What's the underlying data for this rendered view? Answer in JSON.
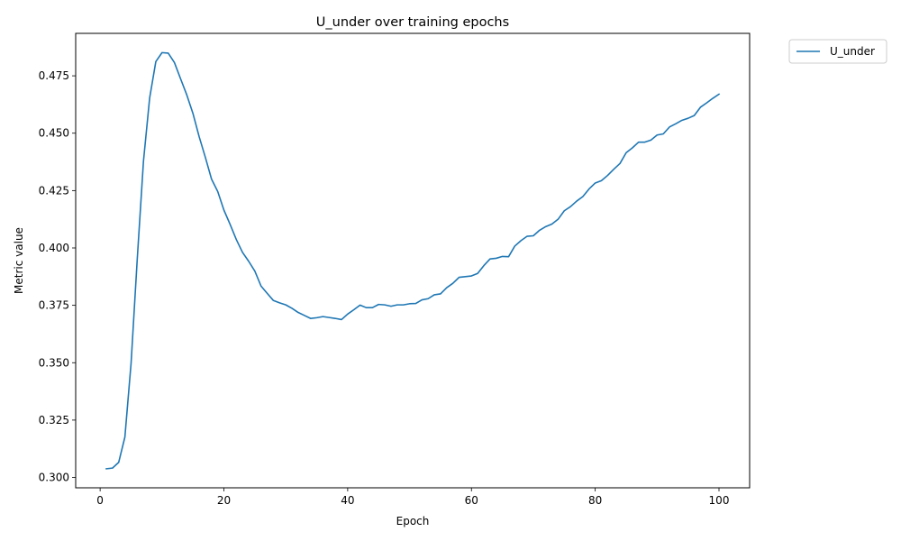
{
  "chart_data": {
    "type": "line",
    "title": "U_under over training epochs",
    "xlabel": "Epoch",
    "ylabel": "Metric value",
    "xlim": [
      -3.95,
      104.95
    ],
    "ylim": [
      0.2955,
      0.4935
    ],
    "xticks": [
      0,
      20,
      40,
      60,
      80,
      100
    ],
    "yticks": [
      0.3,
      0.325,
      0.35,
      0.375,
      0.4,
      0.425,
      0.45,
      0.475
    ],
    "ytick_labels": [
      "0.300",
      "0.325",
      "0.350",
      "0.375",
      "0.400",
      "0.425",
      "0.450",
      "0.475"
    ],
    "grid": false,
    "legend_position": "outside-top-right",
    "series": [
      {
        "name": "U_under",
        "color": "#1f77b4",
        "x": [
          1,
          2,
          3,
          4,
          5,
          6,
          7,
          8,
          9,
          10,
          11,
          12,
          13,
          14,
          15,
          16,
          17,
          18,
          19,
          20,
          21,
          22,
          23,
          24,
          25,
          26,
          27,
          28,
          29,
          30,
          31,
          32,
          33,
          34,
          35,
          36,
          37,
          38,
          39,
          40,
          41,
          42,
          43,
          44,
          45,
          46,
          47,
          48,
          49,
          50,
          51,
          52,
          53,
          54,
          55,
          56,
          57,
          58,
          59,
          60,
          61,
          62,
          63,
          64,
          65,
          66,
          67,
          68,
          69,
          70,
          71,
          72,
          73,
          74,
          75,
          76,
          77,
          78,
          79,
          80,
          81,
          82,
          83,
          84,
          85,
          86,
          87,
          88,
          89,
          90,
          91,
          92,
          93,
          94,
          95,
          96,
          97,
          98,
          99,
          100
        ],
        "values": [
          0.3038,
          0.3041,
          0.3066,
          0.3176,
          0.3497,
          0.3952,
          0.4377,
          0.4653,
          0.4812,
          0.4851,
          0.4849,
          0.4808,
          0.4737,
          0.4667,
          0.4586,
          0.4485,
          0.4395,
          0.43,
          0.4246,
          0.4165,
          0.4103,
          0.4037,
          0.3981,
          0.3942,
          0.3899,
          0.3834,
          0.3802,
          0.3771,
          0.3761,
          0.3752,
          0.3737,
          0.3719,
          0.3706,
          0.3693,
          0.3696,
          0.3701,
          0.3697,
          0.3693,
          0.3688,
          0.3712,
          0.3731,
          0.3751,
          0.374,
          0.374,
          0.3754,
          0.3752,
          0.3746,
          0.3752,
          0.3752,
          0.3757,
          0.3758,
          0.3774,
          0.3779,
          0.3796,
          0.38,
          0.3827,
          0.3846,
          0.3872,
          0.3875,
          0.3878,
          0.3889,
          0.3923,
          0.3952,
          0.3955,
          0.3963,
          0.3962,
          0.4008,
          0.4032,
          0.4051,
          0.4053,
          0.4077,
          0.4093,
          0.4104,
          0.4125,
          0.4162,
          0.418,
          0.4204,
          0.4224,
          0.4257,
          0.4283,
          0.4293,
          0.4316,
          0.4343,
          0.4368,
          0.4415,
          0.4436,
          0.4461,
          0.4461,
          0.447,
          0.4492,
          0.4497,
          0.4527,
          0.4541,
          0.4556,
          0.4565,
          0.4577,
          0.4613,
          0.4632,
          0.4652,
          0.467
        ]
      }
    ]
  }
}
